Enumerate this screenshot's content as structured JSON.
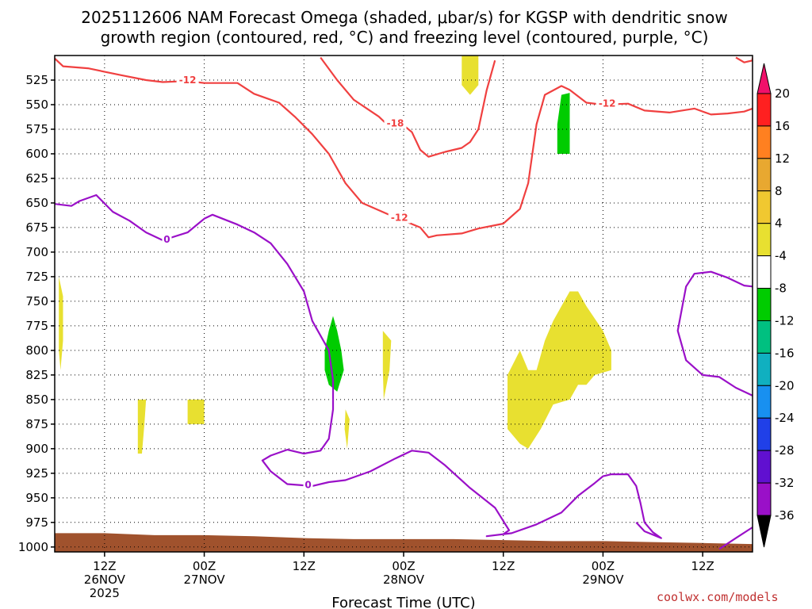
{
  "chart_data": {
    "type": "time-height contour",
    "title_line1": "2025112606 NAM Forecast Omega (shaded, μbar/s) for KGSP with dendritic snow",
    "title_line2": "growth region (contoured, red, °C) and freezing level (contoured, purple, °C)",
    "xlabel": "Forecast Time (UTC)",
    "credit": "coolwx.com/models",
    "x_range_hours": [
      0,
      84
    ],
    "y_range_hpa": [
      500,
      1005
    ],
    "pressure_levels": [
      525,
      550,
      575,
      600,
      625,
      650,
      675,
      700,
      725,
      750,
      775,
      800,
      825,
      850,
      875,
      900,
      925,
      950,
      975,
      1000
    ],
    "x_ticks": [
      {
        "hour": 6,
        "line1": "12Z",
        "line2": "26NOV",
        "line3": "2025"
      },
      {
        "hour": 18,
        "line1": "00Z",
        "line2": "27NOV",
        "line3": ""
      },
      {
        "hour": 30,
        "line1": "12Z",
        "line2": "",
        "line3": ""
      },
      {
        "hour": 42,
        "line1": "00Z",
        "line2": "28NOV",
        "line3": ""
      },
      {
        "hour": 54,
        "line1": "12Z",
        "line2": "",
        "line3": ""
      },
      {
        "hour": 66,
        "line1": "00Z",
        "line2": "29NOV",
        "line3": ""
      },
      {
        "hour": 78,
        "line1": "12Z",
        "line2": "",
        "line3": ""
      }
    ],
    "colorbar": {
      "levels": [
        20,
        16,
        12,
        8,
        4,
        -4,
        -8,
        -12,
        -16,
        -20,
        -24,
        -28,
        -32,
        -36
      ],
      "colors": [
        "#ff2020",
        "#ff8020",
        "#e8a830",
        "#f0c830",
        "#e8e030",
        "#ffffff",
        "#00cc00",
        "#00c080",
        "#10b0c0",
        "#1890f0",
        "#2040e8",
        "#6010d0",
        "#9a10c8",
        "#a0a0a0"
      ],
      "top_arrow_color": "#f0106a",
      "bottom_arrow_color": "#000000"
    },
    "contours": [
      {
        "name": "dendritic-upper",
        "label": "-12",
        "color": "#f04040",
        "points": [
          [
            0,
            503
          ],
          [
            1,
            511
          ],
          [
            4,
            513
          ],
          [
            8,
            520
          ],
          [
            11,
            525
          ],
          [
            13,
            527
          ],
          [
            16,
            526
          ],
          [
            18,
            528
          ],
          [
            22,
            528
          ],
          [
            24,
            539
          ],
          [
            27,
            548
          ],
          [
            29,
            563
          ],
          [
            31,
            580
          ],
          [
            33,
            600
          ],
          [
            35,
            630
          ],
          [
            37,
            650
          ],
          [
            40,
            661
          ],
          [
            44,
            675
          ],
          [
            45,
            685
          ],
          [
            46,
            683
          ],
          [
            49,
            681
          ],
          [
            51,
            676
          ],
          [
            54,
            671
          ],
          [
            56,
            656
          ],
          [
            57,
            630
          ],
          [
            58,
            570
          ],
          [
            59,
            540
          ],
          [
            61,
            531
          ],
          [
            62,
            535
          ],
          [
            64,
            548
          ],
          [
            66,
            550
          ],
          [
            69,
            549
          ],
          [
            71,
            556
          ],
          [
            74,
            558
          ],
          [
            77,
            554
          ],
          [
            79,
            560
          ],
          [
            81,
            559
          ],
          [
            83,
            557
          ],
          [
            84,
            554
          ]
        ]
      },
      {
        "name": "dendritic-lower",
        "label": "-18",
        "color": "#f04040",
        "points": [
          [
            32,
            502
          ],
          [
            34,
            525
          ],
          [
            36,
            545
          ],
          [
            39,
            562
          ],
          [
            40,
            570
          ],
          [
            42,
            571
          ],
          [
            43,
            578
          ],
          [
            44,
            596
          ],
          [
            45,
            603
          ],
          [
            47,
            598
          ],
          [
            49,
            594
          ],
          [
            50,
            588
          ],
          [
            51,
            575
          ],
          [
            52,
            535
          ],
          [
            53,
            505
          ]
        ]
      },
      {
        "name": "dendritic-top-right",
        "label": "",
        "color": "#f04040",
        "points": [
          [
            82,
            502
          ],
          [
            83,
            507
          ],
          [
            84,
            505
          ],
          [
            84,
            502
          ]
        ]
      },
      {
        "name": "freezing-level",
        "label": "0",
        "color": "#9a10c8",
        "points": [
          [
            0,
            651
          ],
          [
            2,
            653
          ],
          [
            3,
            648
          ],
          [
            5,
            642
          ],
          [
            7,
            659
          ],
          [
            9,
            668
          ],
          [
            11,
            680
          ],
          [
            13,
            688
          ],
          [
            16,
            680
          ],
          [
            18,
            666
          ],
          [
            19,
            662
          ],
          [
            22,
            672
          ],
          [
            24,
            680
          ],
          [
            26,
            691
          ],
          [
            28,
            712
          ],
          [
            30,
            740
          ],
          [
            31,
            770
          ],
          [
            33,
            800
          ],
          [
            33.5,
            830
          ],
          [
            33.5,
            860
          ],
          [
            33,
            890
          ],
          [
            32,
            902
          ],
          [
            30,
            905
          ],
          [
            28,
            901
          ],
          [
            26,
            907
          ],
          [
            25,
            912
          ],
          [
            26,
            923
          ],
          [
            28,
            936
          ],
          [
            31,
            938
          ],
          [
            33,
            934
          ],
          [
            35,
            932
          ],
          [
            38,
            923
          ],
          [
            41,
            910
          ],
          [
            43,
            902
          ],
          [
            45,
            904
          ],
          [
            47,
            917
          ],
          [
            50,
            940
          ],
          [
            53,
            960
          ],
          [
            54.7,
            983
          ],
          [
            54,
            987
          ],
          [
            52,
            989
          ],
          [
            55,
            986
          ],
          [
            58,
            977
          ],
          [
            61,
            965
          ],
          [
            63,
            948
          ],
          [
            65,
            935
          ],
          [
            66,
            928
          ],
          [
            67,
            926
          ],
          [
            69,
            926
          ],
          [
            70,
            938
          ],
          [
            70.5,
            955
          ],
          [
            71,
            975
          ],
          [
            72,
            985
          ],
          [
            73,
            991
          ],
          [
            71,
            984
          ],
          [
            70,
            975
          ]
        ]
      },
      {
        "name": "freezing-level-right",
        "label": "",
        "color": "#9a10c8",
        "points": [
          [
            80,
            1002
          ],
          [
            82,
            991
          ],
          [
            84,
            980
          ]
        ]
      },
      {
        "name": "freezing-level-right-upper",
        "label": "",
        "color": "#9a10c8",
        "points": [
          [
            84,
            735
          ],
          [
            83,
            734
          ],
          [
            81,
            726
          ],
          [
            79,
            720
          ],
          [
            77,
            722
          ],
          [
            76,
            735
          ],
          [
            75,
            780
          ],
          [
            76,
            810
          ],
          [
            78,
            825
          ],
          [
            80,
            827
          ],
          [
            82,
            838
          ],
          [
            84,
            846
          ]
        ]
      }
    ],
    "contour_labels": [
      {
        "text": "-12",
        "hour": 16,
        "hpa": 525,
        "color": "#f04040"
      },
      {
        "text": "-18",
        "hour": 41,
        "hpa": 569,
        "color": "#f04040"
      },
      {
        "text": "-12",
        "hour": 41.5,
        "hpa": 665,
        "color": "#f04040"
      },
      {
        "text": "-12",
        "hour": 66.5,
        "hpa": 549,
        "color": "#f04040"
      },
      {
        "text": "0",
        "hour": 13.5,
        "hpa": 687,
        "color": "#9a10c8"
      },
      {
        "text": "0",
        "hour": 30.5,
        "hpa": 937,
        "color": "#9a10c8"
      }
    ],
    "omega_regions": [
      {
        "name": "omega-pos-1",
        "value": 4,
        "points": [
          [
            0.5,
            725
          ],
          [
            1,
            745
          ],
          [
            1,
            770
          ],
          [
            1,
            790
          ],
          [
            0.7,
            820
          ],
          [
            0.5,
            800
          ]
        ]
      },
      {
        "name": "omega-pos-2",
        "value": 4,
        "points": [
          [
            10,
            850
          ],
          [
            11,
            850
          ],
          [
            10.8,
            875
          ],
          [
            10.5,
            905
          ],
          [
            10,
            905
          ],
          [
            10,
            885
          ]
        ]
      },
      {
        "name": "omega-pos-3",
        "value": 4,
        "points": [
          [
            16,
            850
          ],
          [
            18,
            850
          ],
          [
            18,
            875
          ],
          [
            16,
            875
          ]
        ]
      },
      {
        "name": "omega-pos-4",
        "value": 4,
        "points": [
          [
            35,
            860
          ],
          [
            35.5,
            870
          ],
          [
            35.2,
            900
          ],
          [
            34.9,
            880
          ]
        ]
      },
      {
        "name": "omega-pos-5",
        "value": 4,
        "points": [
          [
            39.5,
            780
          ],
          [
            40.5,
            790
          ],
          [
            40.3,
            820
          ],
          [
            39.6,
            850
          ],
          [
            39.5,
            820
          ]
        ]
      },
      {
        "name": "omega-pos-6",
        "value": 4,
        "points": [
          [
            49,
            500
          ],
          [
            51,
            500
          ],
          [
            51,
            530
          ],
          [
            50,
            540
          ],
          [
            49,
            530
          ]
        ]
      },
      {
        "name": "omega-pos-7",
        "value": 4,
        "points": [
          [
            54.5,
            825
          ],
          [
            56,
            800
          ],
          [
            57,
            820
          ],
          [
            58,
            820
          ],
          [
            59,
            790
          ],
          [
            60,
            770
          ],
          [
            61,
            755
          ],
          [
            62,
            740
          ],
          [
            63,
            740
          ],
          [
            64,
            755
          ],
          [
            66,
            780
          ],
          [
            67,
            800
          ],
          [
            67,
            820
          ],
          [
            65,
            825
          ],
          [
            64,
            835
          ],
          [
            63,
            835
          ],
          [
            62,
            850
          ],
          [
            60,
            855
          ],
          [
            58.5,
            880
          ],
          [
            57,
            900
          ],
          [
            56,
            895
          ],
          [
            54.5,
            880
          ]
        ]
      },
      {
        "name": "omega-neg-1",
        "value": -4,
        "points": [
          [
            32.5,
            800
          ],
          [
            33,
            780
          ],
          [
            33.5,
            765
          ],
          [
            34,
            780
          ],
          [
            34.5,
            800
          ],
          [
            34.8,
            820
          ],
          [
            34,
            842
          ],
          [
            33,
            835
          ],
          [
            32.5,
            820
          ]
        ]
      },
      {
        "name": "omega-neg-2",
        "value": -4,
        "points": [
          [
            60.5,
            570
          ],
          [
            61,
            540
          ],
          [
            62,
            538
          ],
          [
            62,
            600
          ],
          [
            60.5,
            600
          ]
        ]
      }
    ],
    "terrain": {
      "name": "surface-terrain",
      "color": "#a0522d",
      "points": [
        [
          0,
          986
        ],
        [
          6,
          986
        ],
        [
          12,
          988
        ],
        [
          18,
          988
        ],
        [
          24,
          989
        ],
        [
          30,
          991
        ],
        [
          36,
          992
        ],
        [
          42,
          992
        ],
        [
          48,
          992
        ],
        [
          54,
          993
        ],
        [
          60,
          994
        ],
        [
          66,
          994
        ],
        [
          72,
          995
        ],
        [
          78,
          996
        ],
        [
          84,
          997
        ]
      ]
    }
  }
}
